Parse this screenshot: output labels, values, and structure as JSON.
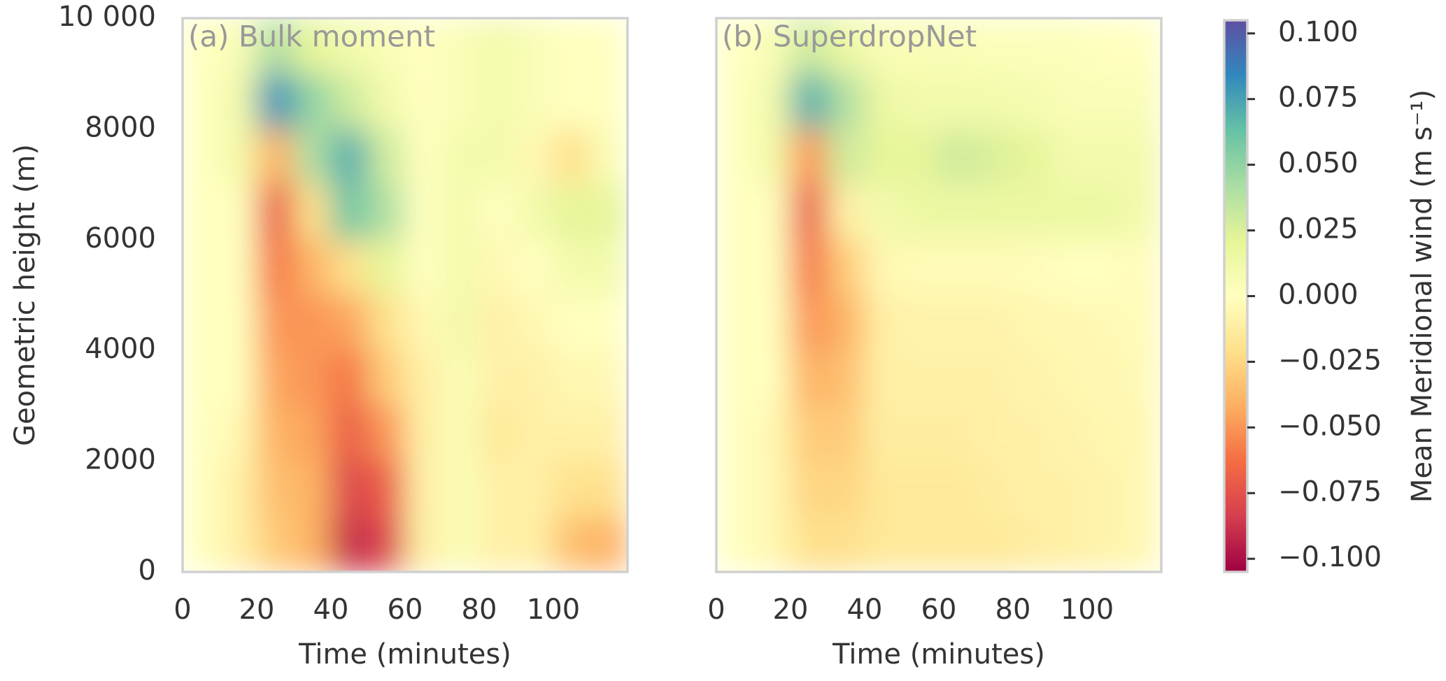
{
  "chart_data": [
    {
      "type": "heatmap",
      "title": "(a) Bulk moment",
      "xlabel": "Time (minutes)",
      "ylabel": "Geometric height (m)",
      "xlim": [
        0,
        120
      ],
      "ylim": [
        0,
        10000
      ],
      "xticks": [
        0,
        20,
        40,
        60,
        80,
        100
      ],
      "yticks": [
        0,
        2000,
        4000,
        6000,
        8000,
        {
          "value": 10000,
          "label": "10 000"
        }
      ],
      "x": [
        5,
        15,
        25,
        35,
        45,
        55,
        65,
        75,
        85,
        95,
        105,
        115
      ],
      "y": [
        500,
        1500,
        2500,
        3500,
        4500,
        5500,
        6500,
        7500,
        8500,
        9500
      ],
      "z": [
        [
          0,
          -0.01,
          -0.03,
          -0.04,
          -0.09,
          -0.08,
          -0.01,
          0.005,
          -0.01,
          -0.01,
          -0.035,
          -0.04
        ],
        [
          0,
          -0.01,
          -0.035,
          -0.04,
          -0.08,
          -0.07,
          -0.01,
          0.005,
          -0.01,
          -0.01,
          -0.02,
          -0.02
        ],
        [
          0,
          -0.005,
          -0.04,
          -0.045,
          -0.07,
          -0.05,
          -0.01,
          0.005,
          -0.015,
          -0.01,
          -0.01,
          -0.01
        ],
        [
          0,
          0,
          -0.045,
          -0.05,
          -0.06,
          -0.03,
          -0.01,
          0.005,
          -0.01,
          -0.01,
          -0.005,
          -0.005
        ],
        [
          0,
          0,
          -0.05,
          -0.05,
          -0.045,
          -0.02,
          -0.005,
          0.01,
          -0.01,
          -0.005,
          0,
          0
        ],
        [
          0,
          0,
          -0.06,
          -0.04,
          -0.02,
          0.02,
          0,
          0.01,
          -0.005,
          0,
          0.01,
          0.01
        ],
        [
          0,
          0,
          -0.07,
          -0.02,
          0.06,
          0.04,
          0,
          0.01,
          0,
          0.01,
          0.02,
          0.02
        ],
        [
          0,
          0.01,
          -0.04,
          0.04,
          0.07,
          0.03,
          0,
          0.01,
          0.01,
          -0.005,
          -0.02,
          0.005
        ],
        [
          0,
          0.01,
          0.08,
          0.05,
          0.03,
          0.01,
          0,
          0.005,
          0.01,
          0.005,
          0,
          0
        ],
        [
          0,
          0.005,
          0.04,
          0.02,
          0.01,
          0.005,
          0,
          0.005,
          0.01,
          0.005,
          0,
          0
        ]
      ]
    },
    {
      "type": "heatmap",
      "title": "(b) SuperdropNet",
      "xlabel": "Time (minutes)",
      "xlim": [
        0,
        120
      ],
      "ylim": [
        0,
        10000
      ],
      "xticks": [
        0,
        20,
        40,
        60,
        80,
        100
      ],
      "x": [
        5,
        15,
        25,
        35,
        45,
        55,
        65,
        75,
        85,
        95,
        105,
        115
      ],
      "y": [
        500,
        1500,
        2500,
        3500,
        4500,
        5500,
        6500,
        7500,
        8500,
        9500
      ],
      "z": [
        [
          0,
          -0.005,
          -0.02,
          -0.02,
          -0.015,
          -0.015,
          -0.015,
          -0.015,
          -0.012,
          -0.01,
          -0.008,
          -0.005
        ],
        [
          0,
          -0.005,
          -0.025,
          -0.025,
          -0.015,
          -0.015,
          -0.015,
          -0.012,
          -0.01,
          -0.01,
          -0.008,
          -0.005
        ],
        [
          0,
          -0.005,
          -0.03,
          -0.03,
          -0.012,
          -0.012,
          -0.012,
          -0.01,
          -0.01,
          -0.008,
          -0.006,
          -0.005
        ],
        [
          0,
          0,
          -0.04,
          -0.035,
          -0.01,
          -0.01,
          -0.01,
          -0.01,
          -0.008,
          -0.006,
          -0.005,
          -0.004
        ],
        [
          0,
          0,
          -0.05,
          -0.04,
          -0.01,
          -0.008,
          -0.008,
          -0.008,
          -0.006,
          -0.005,
          -0.004,
          -0.003
        ],
        [
          0,
          0,
          -0.06,
          -0.03,
          -0.005,
          -0.003,
          -0.003,
          -0.003,
          -0.002,
          0,
          0,
          -0.002
        ],
        [
          0,
          0,
          -0.07,
          -0.01,
          0.01,
          0.015,
          0.015,
          0.015,
          0.015,
          0.015,
          0.015,
          0.01
        ],
        [
          0,
          0.01,
          -0.05,
          0.03,
          0.02,
          0.02,
          0.03,
          0.025,
          0.02,
          0.01,
          0.01,
          0.01
        ],
        [
          0,
          0.01,
          0.07,
          0.04,
          0.015,
          0.01,
          0.01,
          0.01,
          0.008,
          0.005,
          0.005,
          0.005
        ],
        [
          0,
          0.005,
          0.03,
          0.015,
          0.005,
          0.005,
          0.005,
          0.003,
          0.003,
          0.003,
          0,
          0
        ]
      ]
    }
  ],
  "colorbar": {
    "label": "Mean Meridional wind (m s⁻¹)",
    "clim": [
      -0.105,
      0.105
    ],
    "colormap": [
      "#9e0142",
      "#d53e4f",
      "#f46d43",
      "#fdae61",
      "#fee08b",
      "#ffffbf",
      "#e6f598",
      "#abdda4",
      "#66c2a5",
      "#3288bd",
      "#5e4fa2"
    ],
    "ticks": [
      {
        "value": -0.1,
        "label": "−0.100"
      },
      {
        "value": -0.075,
        "label": "−0.075"
      },
      {
        "value": -0.05,
        "label": "−0.050"
      },
      {
        "value": -0.025,
        "label": "−0.025"
      },
      {
        "value": 0,
        "label": "0.000"
      },
      {
        "value": 0.025,
        "label": "0.025"
      },
      {
        "value": 0.05,
        "label": "0.050"
      },
      {
        "value": 0.075,
        "label": "0.075"
      },
      {
        "value": 0.1,
        "label": "0.100"
      }
    ]
  }
}
